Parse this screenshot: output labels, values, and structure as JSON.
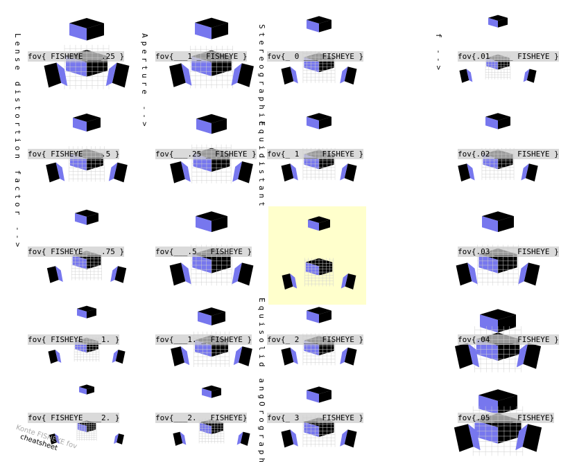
{
  "colors": {
    "face_light": "#7777ee",
    "face_dark": "#000000",
    "face_grey": "#555555",
    "grid": "#cfcfcf",
    "highlight": "#ffffcc",
    "label_bg": "#cccccc"
  },
  "axis_labels": {
    "distortion": "Lense distortion factor -->",
    "aperture": "Aperture -->",
    "f": "f -->",
    "stereographic": "Stereographic",
    "equidistant": "Equidistant",
    "equisolid": "Equisolid ang",
    "orthographic": "Orograph"
  },
  "columns": [
    {
      "name": "distortion",
      "labels": [
        "fov{ FISHEYE ___.25 }",
        "fov{ FISHEYE ___.5 }",
        "fov{ FISHEYE ___.75 }",
        "fov{ FISHEYE ___1. }",
        "fov{ FISHEYE ___2. }"
      ],
      "scales": [
        1.25,
        1.0,
        0.85,
        0.7,
        0.55
      ]
    },
    {
      "name": "aperture",
      "labels": [
        "fov{___1 _ FISHEYE }",
        "fov{___.25 _ FISHEYE }",
        "fov{___.5 _ FISHEYE }",
        "fov{___1. _ FISHEYE }",
        "fov{___2. _ FISHEYE}"
      ],
      "scales": [
        1.2,
        1.1,
        1.15,
        1.0,
        0.7
      ]
    },
    {
      "name": "mapping",
      "labels": [
        "fov{_ 0 ___ FISHEYE }",
        "fov{_ 1 ___ FISHEYE }",
        "",
        "fov{_ 2 ___ FISHEYE }",
        "fov{_ 3 ___ FISHEYE }"
      ],
      "scales": [
        0.9,
        0.9,
        0.8,
        0.9,
        0.9
      ]
    },
    {
      "name": "f",
      "labels": [
        "fov{.01 ____ FISHEYE }",
        "fov{.02 ____ FISHEYE }",
        "fov{.03 ____ FISHEYE }",
        "fov{.04 ____ FISHEYE }",
        "fov{.05 ____ FISHEYE}"
      ],
      "scales": [
        0.7,
        0.9,
        1.15,
        1.3,
        1.4
      ]
    }
  ],
  "watermark": {
    "line1": "Konte FISHEYE fov",
    "line2": "cheatsheet"
  }
}
